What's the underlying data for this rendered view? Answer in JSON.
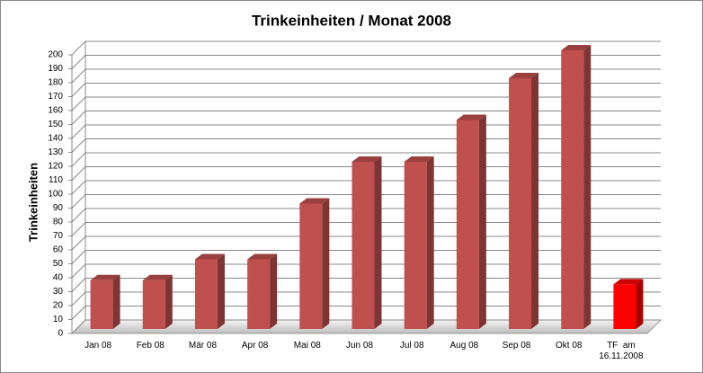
{
  "chart_data": {
    "type": "bar3d",
    "title": "Trinkeinheiten / Monat 2008",
    "y_label": "Trinkeinheiten",
    "categories": [
      "Jan 08",
      "Feb 08",
      "Mär 08",
      "Apr 08",
      "Mai 08",
      "Jun 08",
      "Jul 08",
      "Aug 08",
      "Sep 08",
      "Okt 08",
      "TF  am 16.11.2008"
    ],
    "values": [
      35,
      35,
      50,
      50,
      90,
      120,
      120,
      150,
      180,
      200,
      32
    ],
    "colors": [
      "#c0504d",
      "#c0504d",
      "#c0504d",
      "#c0504d",
      "#c0504d",
      "#c0504d",
      "#c0504d",
      "#c0504d",
      "#c0504d",
      "#c0504d",
      "#ff0000"
    ],
    "ylim": [
      0,
      200
    ],
    "yticks": [
      0,
      10,
      20,
      30,
      40,
      50,
      60,
      70,
      80,
      90,
      100,
      110,
      120,
      130,
      140,
      150,
      160,
      170,
      180,
      190,
      200
    ],
    "grid": true
  }
}
